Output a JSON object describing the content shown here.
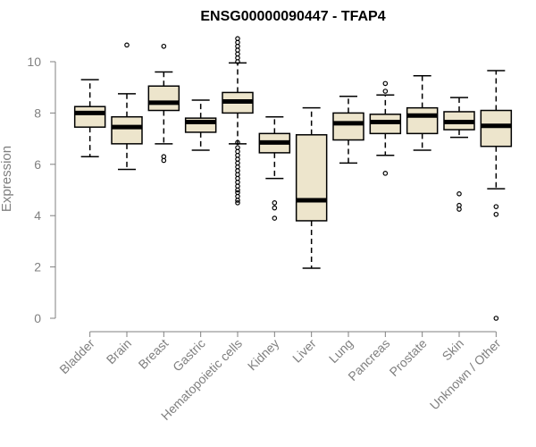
{
  "chart_data": {
    "type": "boxplot",
    "title": "ENSG00000090447 - TFAP4",
    "xlabel": "",
    "ylabel": "Expression",
    "ylim": [
      0,
      10
    ],
    "yticks": [
      0,
      2,
      4,
      6,
      8,
      10
    ],
    "categories": [
      "Bladder",
      "Brain",
      "Breast",
      "Gastric",
      "Hematopoietic cells",
      "Kidney",
      "Liver",
      "Lung",
      "Pancreas",
      "Prostate",
      "Skin",
      "Unknown / Other"
    ],
    "boxes": [
      {
        "name": "Bladder",
        "whisker_low": 6.3,
        "q1": 7.45,
        "median": 8.0,
        "q3": 8.25,
        "whisker_high": 9.3,
        "outliers": []
      },
      {
        "name": "Brain",
        "whisker_low": 5.8,
        "q1": 6.8,
        "median": 7.45,
        "q3": 7.85,
        "whisker_high": 8.75,
        "outliers": [
          10.65
        ]
      },
      {
        "name": "Breast",
        "whisker_low": 6.8,
        "q1": 8.1,
        "median": 8.4,
        "q3": 9.05,
        "whisker_high": 9.6,
        "outliers": [
          6.15,
          6.3,
          10.6
        ]
      },
      {
        "name": "Gastric",
        "whisker_low": 6.55,
        "q1": 7.25,
        "median": 7.65,
        "q3": 7.8,
        "whisker_high": 8.5,
        "outliers": []
      },
      {
        "name": "Hematopoietic cells",
        "whisker_low": 6.8,
        "q1": 8.0,
        "median": 8.45,
        "q3": 8.8,
        "whisker_high": 9.95,
        "outliers": [
          4.5,
          4.6,
          4.75,
          4.9,
          5.0,
          5.15,
          5.3,
          5.45,
          5.6,
          5.75,
          5.9,
          6.05,
          6.2,
          6.35,
          6.5,
          6.65,
          6.85,
          10.0,
          10.15,
          10.3,
          10.45,
          10.6,
          10.75,
          10.9
        ]
      },
      {
        "name": "Kidney",
        "whisker_low": 5.45,
        "q1": 6.45,
        "median": 6.85,
        "q3": 7.2,
        "whisker_high": 7.85,
        "outliers": [
          3.9,
          4.3,
          4.5
        ]
      },
      {
        "name": "Liver",
        "whisker_low": 1.95,
        "q1": 3.8,
        "median": 4.6,
        "q3": 7.15,
        "whisker_high": 8.2,
        "outliers": []
      },
      {
        "name": "Lung",
        "whisker_low": 6.05,
        "q1": 6.95,
        "median": 7.6,
        "q3": 8.0,
        "whisker_high": 8.65,
        "outliers": []
      },
      {
        "name": "Pancreas",
        "whisker_low": 6.35,
        "q1": 7.2,
        "median": 7.65,
        "q3": 7.95,
        "whisker_high": 8.7,
        "outliers": [
          5.65,
          8.85,
          9.15
        ]
      },
      {
        "name": "Prostate",
        "whisker_low": 6.55,
        "q1": 7.2,
        "median": 7.9,
        "q3": 8.2,
        "whisker_high": 9.45,
        "outliers": []
      },
      {
        "name": "Skin",
        "whisker_low": 7.05,
        "q1": 7.35,
        "median": 7.65,
        "q3": 8.05,
        "whisker_high": 8.6,
        "outliers": [
          4.25,
          4.4,
          4.85
        ]
      },
      {
        "name": "Unknown / Other",
        "whisker_low": 5.05,
        "q1": 6.7,
        "median": 7.5,
        "q3": 8.1,
        "whisker_high": 9.65,
        "outliers": [
          0.0,
          4.05,
          4.35
        ]
      }
    ],
    "box_fill": "#ede5cc",
    "box_stroke": "#000000",
    "axis_color": "#808080",
    "text_color": "#808080"
  }
}
